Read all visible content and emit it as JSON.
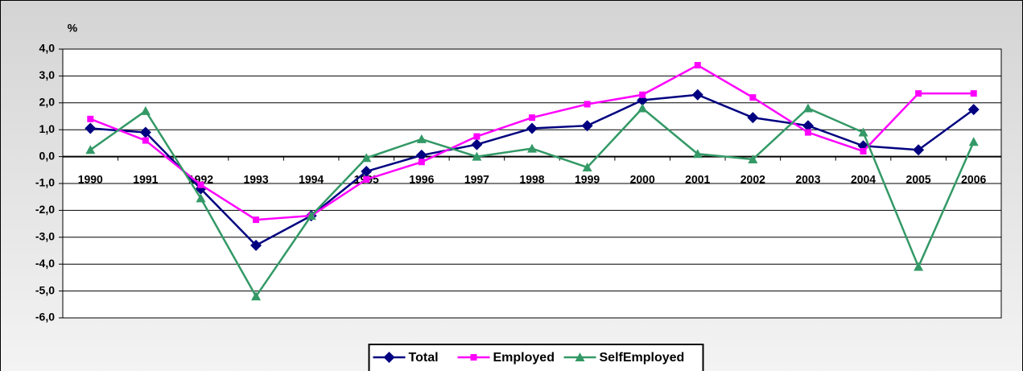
{
  "chart_data": {
    "type": "line",
    "ylabel": "%",
    "categories": [
      "1990",
      "1991",
      "1992",
      "1993",
      "1994",
      "1995",
      "1996",
      "1997",
      "1998",
      "1999",
      "2000",
      "2001",
      "2002",
      "2003",
      "2004",
      "2005",
      "2006"
    ],
    "series": [
      {
        "name": "Total",
        "color": "#000080",
        "marker": "diamond",
        "values": [
          1.05,
          0.9,
          -1.2,
          -3.3,
          -2.2,
          -0.55,
          0.05,
          0.45,
          1.05,
          1.15,
          2.1,
          2.3,
          1.45,
          1.15,
          0.4,
          0.25,
          1.75
        ]
      },
      {
        "name": "Employed",
        "color": "#ff00ff",
        "marker": "square",
        "values": [
          1.4,
          0.6,
          -1.05,
          -2.35,
          -2.2,
          -0.85,
          -0.2,
          0.75,
          1.45,
          1.95,
          2.3,
          3.4,
          2.2,
          0.9,
          0.2,
          2.35,
          2.35
        ]
      },
      {
        "name": "SelfEmployed",
        "color": "#339966",
        "marker": "triangle",
        "values": [
          0.25,
          1.7,
          -1.55,
          -5.2,
          -2.2,
          -0.05,
          0.65,
          0.0,
          0.3,
          -0.4,
          1.8,
          0.1,
          -0.1,
          1.8,
          0.9,
          -4.1,
          0.55
        ]
      }
    ],
    "ylim": [
      -6,
      4
    ],
    "yticks": [
      {
        "value": -6,
        "label": "-6,0"
      },
      {
        "value": -5,
        "label": "-5,0"
      },
      {
        "value": -4,
        "label": "-4,0"
      },
      {
        "value": -3,
        "label": "-3,0"
      },
      {
        "value": -2,
        "label": "-2,0"
      },
      {
        "value": -1,
        "label": "-1,0"
      },
      {
        "value": 0,
        "label": "0,0"
      },
      {
        "value": 1,
        "label": "1,0"
      },
      {
        "value": 2,
        "label": "2,0"
      },
      {
        "value": 3,
        "label": "3,0"
      },
      {
        "value": 4,
        "label": "4,0"
      }
    ],
    "grid": true,
    "legend": "bottom"
  }
}
